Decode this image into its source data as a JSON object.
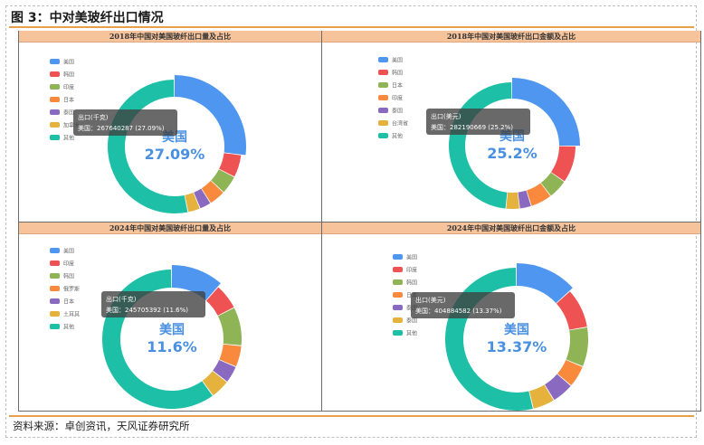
{
  "figure_title": "图 3：中对美玻纤出口情况",
  "source_note": "资料来源：卓创资讯，天风证券研究所",
  "colors": {
    "accent_rule": "#e8a14a",
    "header_bg": "#f6c39b",
    "palette": [
      "#4e96f0",
      "#ee5252",
      "#8fb455",
      "#f98a3d",
      "#8a6ac0",
      "#e5b23d",
      "#1dbfa6"
    ]
  },
  "chart_data": [
    {
      "type": "pie",
      "title": "2018年中国对美国玻纤出口量及占比",
      "center": {
        "name": "美国",
        "value": "27.09%"
      },
      "tooltip": {
        "title": "出口(千克)",
        "body": "美国：267640287 (27.09%)"
      },
      "categories": [
        "美国",
        "韩国",
        "印度",
        "日本",
        "泰国",
        "加拿大",
        "其他"
      ],
      "values": [
        27.09,
        5.5,
        4.5,
        4.0,
        2.8,
        3.0,
        53.11
      ]
    },
    {
      "type": "pie",
      "title": "2018年中国对美国玻纤出口金额及占比",
      "center": {
        "name": "美国",
        "value": "25.2%"
      },
      "tooltip": {
        "title": "出口(美元)",
        "body": "美国：282190669 (25.2%)"
      },
      "categories": [
        "美国",
        "韩国",
        "日本",
        "印度",
        "泰国",
        "台湾省",
        "其他"
      ],
      "values": [
        25.2,
        9.5,
        5.0,
        5.5,
        3.0,
        3.5,
        48.3
      ]
    },
    {
      "type": "pie",
      "title": "2024年中国对美国玻纤出口量及占比",
      "center": {
        "name": "美国",
        "value": "11.6%"
      },
      "tooltip": {
        "title": "出口(千克)",
        "body": "美国：245705392 (11.6%)"
      },
      "categories": [
        "美国",
        "印度",
        "韩国",
        "俄罗斯",
        "日本",
        "土耳其",
        "其他"
      ],
      "values": [
        11.6,
        6.0,
        9.0,
        5.0,
        4.0,
        4.5,
        59.9
      ]
    },
    {
      "type": "pie",
      "title": "2024年中国对美国玻纤出口金额及占比",
      "center": {
        "name": "美国",
        "value": "13.37%"
      },
      "tooltip": {
        "title": "出口(美元)",
        "body": "美国：404884582 (13.37%)"
      },
      "categories": [
        "美国",
        "印度",
        "韩国",
        "日本",
        "泰国",
        "泰国",
        "其他"
      ],
      "values": [
        13.37,
        9.0,
        9.0,
        5.0,
        5.0,
        5.0,
        53.63
      ]
    }
  ]
}
